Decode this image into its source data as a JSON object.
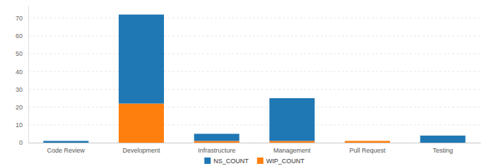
{
  "chart_data": {
    "type": "bar",
    "stacked": true,
    "grid": true,
    "legend": "bottom",
    "categories": [
      "Code Review",
      "Development",
      "Infrastructure",
      "Management",
      "Pull Request",
      "Testing"
    ],
    "series": [
      {
        "name": "NS_COUNT",
        "color": "#1f77b4",
        "values": [
          1,
          50,
          4,
          24,
          0,
          4
        ]
      },
      {
        "name": "WIP_COUNT",
        "color": "#ff7f0e",
        "values": [
          0,
          22,
          1,
          1,
          1,
          0
        ]
      }
    ],
    "ylim": [
      0,
      77
    ],
    "yticks": [
      0,
      10,
      20,
      30,
      40,
      50,
      60,
      70
    ]
  }
}
